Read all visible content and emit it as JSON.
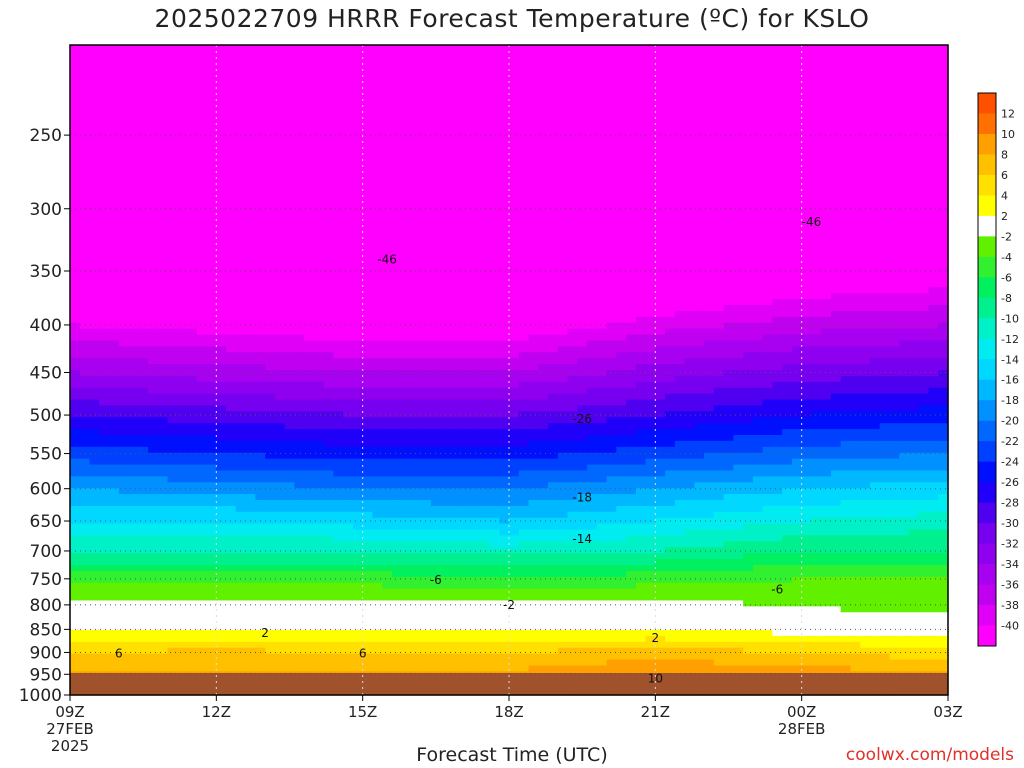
{
  "chart_data": {
    "type": "heatmap",
    "title": "2025022709 HRRR Forecast Temperature (ºC) for KSLO",
    "xlabel": "Forecast Time (UTC)",
    "ylabel": "",
    "credit": "coolwx.com/models",
    "x_ticks": [
      {
        "label": "09Z",
        "hour": 0,
        "sub": [
          "27FEB",
          "2025"
        ]
      },
      {
        "label": "12Z",
        "hour": 3,
        "sub": []
      },
      {
        "label": "15Z",
        "hour": 6,
        "sub": []
      },
      {
        "label": "18Z",
        "hour": 9,
        "sub": []
      },
      {
        "label": "21Z",
        "hour": 12,
        "sub": []
      },
      {
        "label": "00Z",
        "hour": 15,
        "sub": [
          "28FEB"
        ]
      },
      {
        "label": "03Z",
        "hour": 18,
        "sub": []
      }
    ],
    "xlim": [
      0,
      18
    ],
    "y_axis": {
      "scale": "log",
      "inverted": true,
      "ylim": [
        1000,
        200
      ],
      "ticks": [
        1000,
        950,
        900,
        850,
        800,
        750,
        700,
        650,
        600,
        550,
        500,
        450,
        400,
        350,
        300,
        250
      ]
    },
    "grid": true,
    "colorbar": {
      "placement": "right",
      "levels": [
        -40,
        -38,
        -36,
        -34,
        -32,
        -30,
        -28,
        -26,
        -24,
        -22,
        -20,
        -18,
        -16,
        -14,
        -12,
        -10,
        -8,
        -6,
        -4,
        -2,
        2,
        4,
        6,
        8,
        10,
        12
      ],
      "colors": [
        "#ff00ff",
        "#e000f8",
        "#c000f0",
        "#a800f0",
        "#9000f0",
        "#7800f0",
        "#5000f0",
        "#2000f8",
        "#0010ff",
        "#0040ff",
        "#0068ff",
        "#0090ff",
        "#00b8ff",
        "#00d8ff",
        "#00ecf0",
        "#00f0c8",
        "#00f090",
        "#00f060",
        "#30f030",
        "#60f000",
        "#ffffff",
        "#ffff00",
        "#ffe000",
        "#ffc000",
        "#ffa000",
        "#ff7000",
        "#ff5000"
      ]
    },
    "labeled_contours": [
      {
        "value": -46,
        "hour": 6.5,
        "pressure": 340
      },
      {
        "value": -46,
        "hour": 15.2,
        "pressure": 310
      },
      {
        "value": -26,
        "hour": 10.5,
        "pressure": 505
      },
      {
        "value": -18,
        "hour": 10.5,
        "pressure": 613
      },
      {
        "value": -14,
        "hour": 10.5,
        "pressure": 680
      },
      {
        "value": -6,
        "hour": 7.5,
        "pressure": 752
      },
      {
        "value": -6,
        "hour": 14.5,
        "pressure": 770
      },
      {
        "value": -2,
        "hour": 9.0,
        "pressure": 800
      },
      {
        "value": 2,
        "hour": 4.0,
        "pressure": 858
      },
      {
        "value": 2,
        "hour": 12.0,
        "pressure": 868
      },
      {
        "value": 6,
        "hour": 1.0,
        "pressure": 902
      },
      {
        "value": 6,
        "hour": 6.0,
        "pressure": 902
      },
      {
        "value": 10,
        "hour": 12.0,
        "pressure": 960
      }
    ],
    "temperature_profiles": [
      {
        "hour": 0,
        "points": [
          [
            1000,
            9
          ],
          [
            950,
            8
          ],
          [
            900,
            6
          ],
          [
            850,
            2
          ],
          [
            800,
            -1
          ],
          [
            750,
            -5
          ],
          [
            700,
            -10
          ],
          [
            650,
            -14
          ],
          [
            600,
            -18
          ],
          [
            550,
            -23
          ],
          [
            500,
            -28
          ],
          [
            450,
            -34
          ],
          [
            400,
            -40
          ],
          [
            350,
            -46
          ],
          [
            300,
            -52
          ],
          [
            250,
            -54
          ],
          [
            200,
            -56
          ]
        ]
      },
      {
        "hour": 3,
        "points": [
          [
            1000,
            9.5
          ],
          [
            950,
            8.5
          ],
          [
            900,
            6.5
          ],
          [
            850,
            2
          ],
          [
            800,
            -1
          ],
          [
            750,
            -5
          ],
          [
            700,
            -10
          ],
          [
            650,
            -14
          ],
          [
            600,
            -19
          ],
          [
            550,
            -24
          ],
          [
            500,
            -29
          ],
          [
            450,
            -35
          ],
          [
            400,
            -41
          ],
          [
            350,
            -47
          ],
          [
            300,
            -53
          ],
          [
            250,
            -54
          ],
          [
            200,
            -56
          ]
        ]
      },
      {
        "hour": 6,
        "points": [
          [
            1000,
            9
          ],
          [
            950,
            8
          ],
          [
            900,
            6
          ],
          [
            850,
            2
          ],
          [
            800,
            -1
          ],
          [
            750,
            -5
          ],
          [
            700,
            -10
          ],
          [
            650,
            -15
          ],
          [
            600,
            -20
          ],
          [
            550,
            -25
          ],
          [
            500,
            -30
          ],
          [
            450,
            -36
          ],
          [
            400,
            -42
          ],
          [
            350,
            -48
          ],
          [
            300,
            -53
          ],
          [
            250,
            -54
          ],
          [
            200,
            -56
          ]
        ]
      },
      {
        "hour": 9,
        "points": [
          [
            1000,
            9.5
          ],
          [
            950,
            8.5
          ],
          [
            900,
            6
          ],
          [
            850,
            1.5
          ],
          [
            800,
            -1.5
          ],
          [
            750,
            -5.5
          ],
          [
            700,
            -11
          ],
          [
            650,
            -16
          ],
          [
            600,
            -20
          ],
          [
            550,
            -25
          ],
          [
            500,
            -30
          ],
          [
            450,
            -36
          ],
          [
            400,
            -42
          ],
          [
            350,
            -47
          ],
          [
            300,
            -52
          ],
          [
            250,
            -54
          ],
          [
            200,
            -56
          ]
        ]
      },
      {
        "hour": 12,
        "points": [
          [
            1000,
            11
          ],
          [
            950,
            10
          ],
          [
            900,
            7
          ],
          [
            850,
            2
          ],
          [
            800,
            -1
          ],
          [
            750,
            -5
          ],
          [
            700,
            -10
          ],
          [
            650,
            -14
          ],
          [
            600,
            -18
          ],
          [
            550,
            -23
          ],
          [
            500,
            -28
          ],
          [
            450,
            -33
          ],
          [
            400,
            -39
          ],
          [
            350,
            -45
          ],
          [
            300,
            -51
          ],
          [
            250,
            -54
          ],
          [
            200,
            -56
          ]
        ]
      },
      {
        "hour": 15,
        "points": [
          [
            1000,
            10.5
          ],
          [
            950,
            9
          ],
          [
            900,
            6
          ],
          [
            850,
            1
          ],
          [
            800,
            -2.5
          ],
          [
            750,
            -4
          ],
          [
            700,
            -8
          ],
          [
            650,
            -12
          ],
          [
            600,
            -16
          ],
          [
            550,
            -21
          ],
          [
            500,
            -26
          ],
          [
            450,
            -31
          ],
          [
            400,
            -37
          ],
          [
            350,
            -43
          ],
          [
            300,
            -49
          ],
          [
            250,
            -53
          ],
          [
            200,
            -56
          ]
        ]
      },
      {
        "hour": 18,
        "points": [
          [
            1000,
            10
          ],
          [
            950,
            8.5
          ],
          [
            900,
            5
          ],
          [
            850,
            0.5
          ],
          [
            800,
            -3
          ],
          [
            750,
            -4
          ],
          [
            700,
            -8
          ],
          [
            650,
            -11
          ],
          [
            600,
            -15
          ],
          [
            550,
            -20
          ],
          [
            500,
            -25
          ],
          [
            450,
            -30
          ],
          [
            400,
            -36
          ],
          [
            350,
            -42
          ],
          [
            300,
            -48
          ],
          [
            250,
            -53
          ],
          [
            200,
            -56
          ]
        ]
      }
    ]
  }
}
